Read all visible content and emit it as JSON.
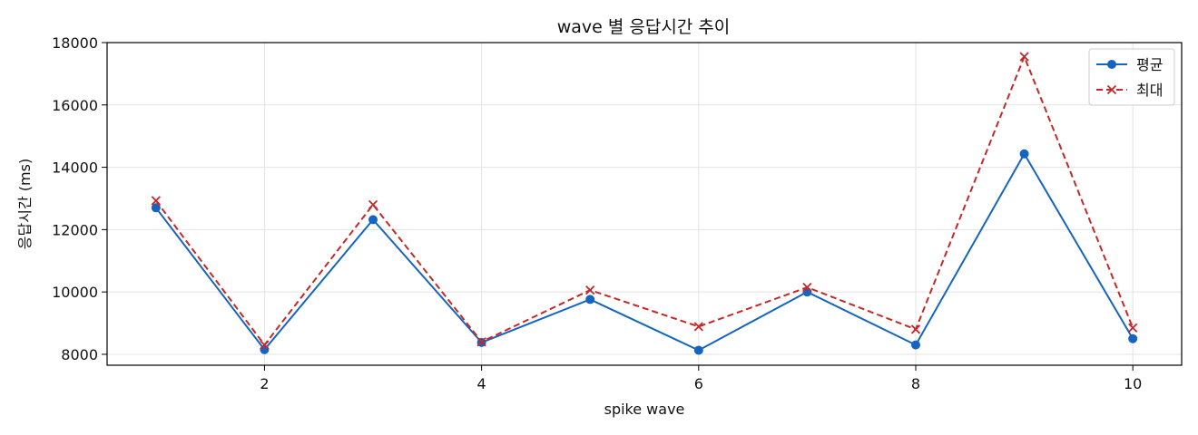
{
  "chart_data": {
    "type": "line",
    "title": "wave 별 응답시간 추이",
    "xlabel": "spike wave",
    "ylabel": "응답시간 (ms)",
    "xlim": [
      0.55,
      10.45
    ],
    "ylim": [
      7650,
      18000
    ],
    "x_ticks": [
      2,
      4,
      6,
      8,
      10
    ],
    "y_ticks": [
      8000,
      10000,
      12000,
      14000,
      16000,
      18000
    ],
    "grid": true,
    "legend_position": "top-right",
    "x": [
      1,
      2,
      3,
      4,
      5,
      6,
      7,
      8,
      9,
      10
    ],
    "series": [
      {
        "name": "평균",
        "color": "#1565c0",
        "line_style": "solid",
        "marker": "circle",
        "values": [
          12700,
          8150,
          12320,
          8380,
          9760,
          8130,
          10000,
          8300,
          14430,
          8500
        ]
      },
      {
        "name": "최대",
        "color": "#c62828",
        "line_style": "dashed",
        "marker": "x",
        "values": [
          12930,
          8300,
          12800,
          8400,
          10060,
          8890,
          10150,
          8800,
          17550,
          8850
        ]
      }
    ]
  }
}
